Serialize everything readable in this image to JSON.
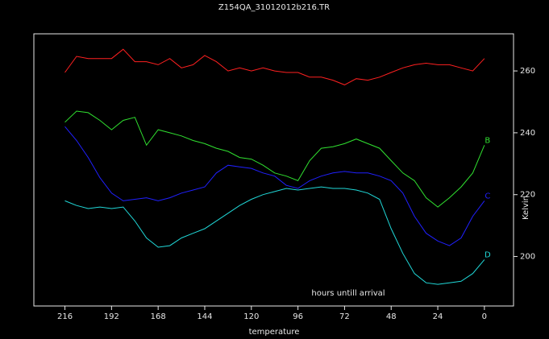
{
  "chart_data": {
    "type": "line",
    "title": "Z154QA_31012012b216.TR",
    "x_label": "temperature",
    "y_label": "Kelvin",
    "annotation": "hours untill arrival",
    "x": [
      216,
      210,
      204,
      198,
      192,
      186,
      180,
      174,
      168,
      162,
      156,
      150,
      144,
      138,
      132,
      126,
      120,
      114,
      108,
      102,
      96,
      90,
      84,
      78,
      72,
      66,
      60,
      54,
      48,
      42,
      36,
      30,
      24,
      18,
      12,
      6,
      0
    ],
    "xlim": [
      232,
      -15
    ],
    "xticks": [
      216,
      192,
      168,
      144,
      120,
      96,
      72,
      48,
      24,
      0
    ],
    "ylim": [
      184,
      272
    ],
    "yticks": [
      200,
      220,
      240,
      260
    ],
    "series": [
      {
        "color": "#ff2020",
        "values": [
          259.5,
          264.7,
          264,
          264,
          264,
          267,
          263,
          263,
          262,
          264,
          261,
          262,
          265,
          263,
          260,
          261,
          260,
          261,
          260,
          259.5,
          259.5,
          258,
          258,
          257,
          255.5,
          257.5,
          257,
          258,
          259.5,
          261,
          262,
          262.5,
          262,
          262,
          261,
          260,
          264
        ]
      },
      {
        "name": "B",
        "color": "#30e030",
        "values": [
          243.4,
          247,
          246.5,
          244,
          241,
          244,
          245,
          236,
          241,
          240,
          239,
          237.5,
          236.5,
          235,
          234,
          232,
          231.5,
          229.5,
          227,
          226,
          224.5,
          231,
          235,
          235.5,
          236.5,
          238,
          236.5,
          235,
          231,
          227,
          224.5,
          219,
          216,
          219,
          222.5,
          227,
          236
        ]
      },
      {
        "name": "C",
        "color": "#2020ff",
        "values": [
          242,
          237.5,
          232,
          225.5,
          220.5,
          218,
          218.5,
          219,
          218,
          219,
          220.5,
          221.5,
          222.5,
          227,
          229.5,
          229,
          228.5,
          227,
          226,
          223,
          222,
          224.5,
          226,
          227,
          227.5,
          227,
          227,
          226,
          224.5,
          220.5,
          213,
          207.5,
          205,
          203.5,
          206,
          213,
          218
        ]
      },
      {
        "name": "D",
        "color": "#20d8d8",
        "values": [
          218,
          216.5,
          215.5,
          216,
          215.5,
          216,
          211.5,
          206,
          203,
          203.5,
          206,
          207.5,
          209,
          211.5,
          214,
          216.5,
          218.5,
          220,
          221,
          222,
          221.5,
          222,
          222.5,
          222,
          222,
          221.5,
          220.5,
          218.5,
          209,
          201,
          194.5,
          191.5,
          191,
          191.5,
          192,
          194.5,
          199
        ]
      }
    ]
  }
}
